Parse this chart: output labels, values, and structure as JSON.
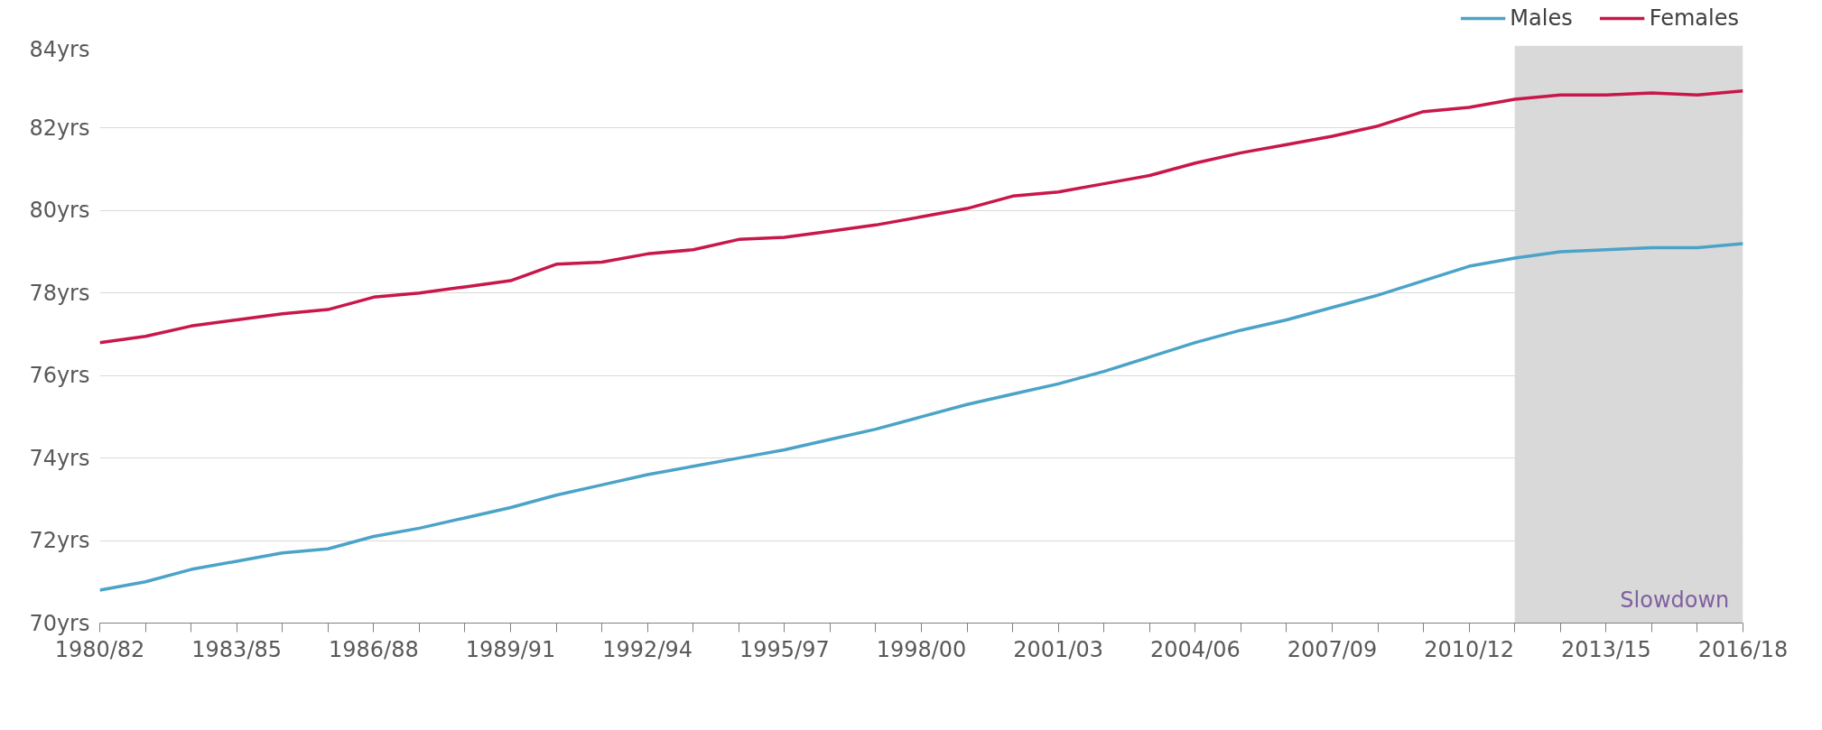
{
  "chart_data": {
    "type": "line",
    "categories": [
      "1980/82",
      null,
      null,
      "1983/85",
      null,
      null,
      "1986/88",
      null,
      null,
      "1989/91",
      null,
      null,
      "1992/94",
      null,
      null,
      "1995/97",
      null,
      null,
      "1998/00",
      null,
      null,
      "2001/03",
      null,
      null,
      "2004/06",
      null,
      null,
      "2007/09",
      null,
      null,
      "2010/12",
      null,
      null,
      "2013/15",
      null,
      null,
      "2016/18"
    ],
    "series": [
      {
        "name": "Males",
        "color": "#4ba3c8",
        "values": [
          70.8,
          71.0,
          71.3,
          71.5,
          71.7,
          71.8,
          72.1,
          72.3,
          72.55,
          72.8,
          73.1,
          73.35,
          73.6,
          73.8,
          74.0,
          74.2,
          74.45,
          74.7,
          75.0,
          75.3,
          75.55,
          75.8,
          76.1,
          76.45,
          76.8,
          77.1,
          77.35,
          77.65,
          77.95,
          78.3,
          78.65,
          78.85,
          79.0,
          79.05,
          79.1,
          79.1,
          79.2
        ]
      },
      {
        "name": "Females",
        "color": "#c8174a",
        "values": [
          76.8,
          76.95,
          77.2,
          77.35,
          77.5,
          77.6,
          77.9,
          78.0,
          78.15,
          78.3,
          78.7,
          78.75,
          78.95,
          79.05,
          79.3,
          79.35,
          79.5,
          79.65,
          79.85,
          80.05,
          80.35,
          80.45,
          80.65,
          80.85,
          81.15,
          81.4,
          81.6,
          81.8,
          82.05,
          82.4,
          82.5,
          82.7,
          82.8,
          82.8,
          82.85,
          82.8,
          82.9
        ]
      }
    ],
    "ylim": [
      70,
      84
    ],
    "yticks": [
      {
        "value": 70,
        "label": "70yrs"
      },
      {
        "value": 72,
        "label": "72yrs"
      },
      {
        "value": 74,
        "label": "74yrs"
      },
      {
        "value": 76,
        "label": "76yrs"
      },
      {
        "value": 78,
        "label": "78yrs"
      },
      {
        "value": 80,
        "label": "80yrs"
      },
      {
        "value": 82,
        "label": "82yrs"
      },
      {
        "value": 84,
        "label": "84yrs"
      }
    ],
    "annotations": [
      "Slowdown"
    ],
    "grid": "y",
    "legend": "top right",
    "marker": "none",
    "line_style": "solid"
  }
}
